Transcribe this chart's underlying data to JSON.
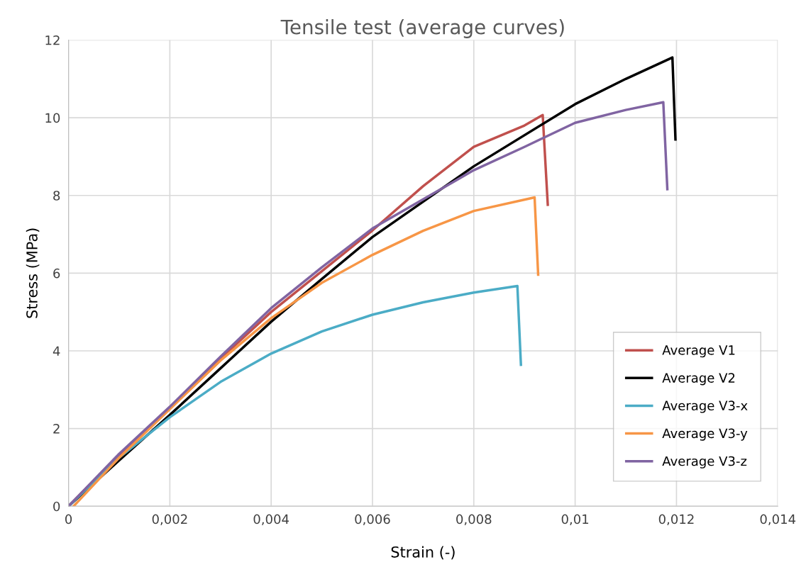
{
  "chart_data": {
    "type": "line",
    "title": "Tensile test (average curves)",
    "xlabel": "Strain (-)",
    "ylabel": "Stress (MPa)",
    "xlim": [
      0,
      0.014
    ],
    "ylim": [
      0,
      12
    ],
    "xticks": [
      0,
      {
        "value": 0.002,
        "label": "0,002"
      },
      {
        "value": 0.004,
        "label": "0,004"
      },
      {
        "value": 0.006,
        "label": "0,006"
      },
      {
        "value": 0.008,
        "label": "0,008"
      },
      {
        "value": 0.01,
        "label": "0,01"
      },
      {
        "value": 0.012,
        "label": "0,012"
      },
      {
        "value": 0.014,
        "label": "0,014"
      }
    ],
    "yticks": [
      0,
      2,
      4,
      6,
      8,
      10,
      12
    ],
    "grid": true,
    "legend": "bottom right",
    "marker": "none",
    "line_style": "solid",
    "series": [
      {
        "name": "Average V1",
        "color": "#c0504d",
        "x": [
          0,
          0.001,
          0.002,
          0.003,
          0.004,
          0.005,
          0.006,
          0.007,
          0.008,
          0.009,
          0.00936,
          0.00946
        ],
        "values": [
          0,
          1.32,
          2.55,
          3.8,
          5.0,
          6.05,
          7.1,
          8.24,
          9.25,
          9.8,
          10.07,
          7.76
        ]
      },
      {
        "name": "Average V2",
        "color": "#000000",
        "x": [
          0,
          0.001,
          0.002,
          0.003,
          0.004,
          0.005,
          0.006,
          0.008,
          0.01,
          0.011,
          0.01192,
          0.01198
        ],
        "values": [
          0,
          1.18,
          2.35,
          3.55,
          4.75,
          5.85,
          6.93,
          8.75,
          10.35,
          11.0,
          11.55,
          9.44
        ]
      },
      {
        "name": "Average V3-x",
        "color": "#4bacc6",
        "x": [
          0,
          0.001,
          0.002,
          0.003,
          0.004,
          0.005,
          0.006,
          0.007,
          0.008,
          0.00886,
          0.00893
        ],
        "values": [
          0,
          1.25,
          2.29,
          3.2,
          3.93,
          4.5,
          4.93,
          5.25,
          5.5,
          5.67,
          3.64
        ]
      },
      {
        "name": "Average V3-y",
        "color": "#f79646",
        "x": [
          0.0001,
          0.001,
          0.002,
          0.003,
          0.004,
          0.005,
          0.006,
          0.007,
          0.008,
          0.0092,
          0.00927
        ],
        "values": [
          0,
          1.25,
          2.5,
          3.75,
          4.84,
          5.75,
          6.47,
          7.09,
          7.6,
          7.95,
          5.96
        ]
      },
      {
        "name": "Average V3-z",
        "color": "#8064a2",
        "x": [
          0,
          0.001,
          0.002,
          0.003,
          0.004,
          0.005,
          0.006,
          0.008,
          0.009,
          0.01,
          0.011,
          0.01174,
          0.01182
        ],
        "values": [
          0,
          1.35,
          2.56,
          3.85,
          5.1,
          6.15,
          7.15,
          8.65,
          9.25,
          9.87,
          10.2,
          10.4,
          8.16
        ]
      }
    ]
  }
}
